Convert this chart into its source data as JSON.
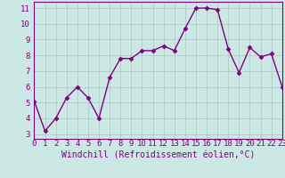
{
  "x": [
    0,
    1,
    2,
    3,
    4,
    5,
    6,
    7,
    8,
    9,
    10,
    11,
    12,
    13,
    14,
    15,
    16,
    17,
    18,
    19,
    20,
    21,
    22,
    23
  ],
  "y": [
    5.1,
    3.2,
    4.0,
    5.3,
    6.0,
    5.3,
    4.0,
    6.6,
    7.8,
    7.8,
    8.3,
    8.3,
    8.6,
    8.3,
    9.7,
    11.0,
    11.0,
    10.9,
    8.4,
    6.9,
    8.5,
    7.9,
    8.1,
    6.0
  ],
  "line_color": "#800080",
  "marker": "D",
  "markersize": 2.5,
  "linewidth": 1.0,
  "xlabel": "Windchill (Refroidissement éolien,°C)",
  "xlabel_fontsize": 7,
  "xlim": [
    0,
    23
  ],
  "ylim": [
    2.7,
    11.4
  ],
  "yticks": [
    3,
    4,
    5,
    6,
    7,
    8,
    9,
    10,
    11
  ],
  "xtick_labels": [
    "0",
    "1",
    "2",
    "3",
    "4",
    "5",
    "6",
    "7",
    "8",
    "9",
    "10",
    "11",
    "12",
    "13",
    "14",
    "15",
    "16",
    "17",
    "18",
    "19",
    "20",
    "21",
    "22",
    "23"
  ],
  "background_color": "#cce8e4",
  "grid_color": "#b0ccc8",
  "tick_fontsize": 6.5,
  "spine_color": "#800080",
  "label_color": "#800080"
}
